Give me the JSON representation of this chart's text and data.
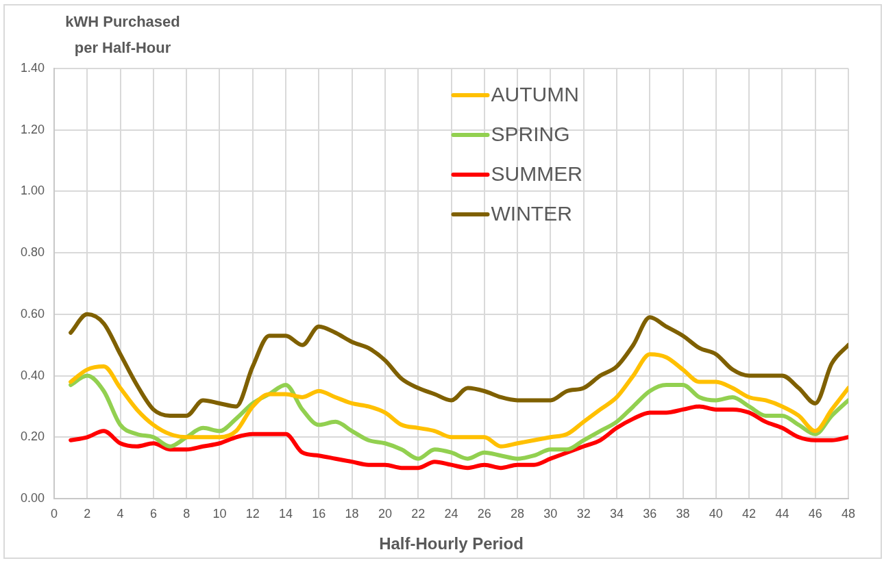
{
  "chart_data": {
    "type": "line",
    "xlabel": "Half-Hourly Period",
    "ylabel": "kWH Purchased per Half-Hour",
    "x": [
      1,
      2,
      3,
      4,
      5,
      6,
      7,
      8,
      9,
      10,
      11,
      12,
      13,
      14,
      15,
      16,
      17,
      18,
      19,
      20,
      21,
      22,
      23,
      24,
      25,
      26,
      27,
      28,
      29,
      30,
      31,
      32,
      33,
      34,
      35,
      36,
      37,
      38,
      39,
      40,
      41,
      42,
      43,
      44,
      45,
      46,
      47,
      48
    ],
    "series": [
      {
        "name": "AUTUMN",
        "color": "#ffc000",
        "values": [
          0.38,
          0.42,
          0.43,
          0.36,
          0.29,
          0.24,
          0.21,
          0.2,
          0.2,
          0.2,
          0.22,
          0.3,
          0.34,
          0.34,
          0.33,
          0.35,
          0.33,
          0.31,
          0.3,
          0.28,
          0.24,
          0.23,
          0.22,
          0.2,
          0.2,
          0.2,
          0.17,
          0.18,
          0.19,
          0.2,
          0.21,
          0.25,
          0.29,
          0.33,
          0.4,
          0.47,
          0.46,
          0.42,
          0.38,
          0.38,
          0.36,
          0.33,
          0.32,
          0.3,
          0.27,
          0.22,
          0.29,
          0.36
        ]
      },
      {
        "name": "SPRING",
        "color": "#92d050",
        "values": [
          0.37,
          0.4,
          0.35,
          0.24,
          0.21,
          0.2,
          0.17,
          0.2,
          0.23,
          0.22,
          0.26,
          0.31,
          0.34,
          0.37,
          0.29,
          0.24,
          0.25,
          0.22,
          0.19,
          0.18,
          0.16,
          0.13,
          0.16,
          0.15,
          0.13,
          0.15,
          0.14,
          0.13,
          0.14,
          0.16,
          0.16,
          0.19,
          0.22,
          0.25,
          0.3,
          0.35,
          0.37,
          0.37,
          0.33,
          0.32,
          0.33,
          0.3,
          0.27,
          0.27,
          0.24,
          0.21,
          0.27,
          0.32
        ]
      },
      {
        "name": "SUMMER",
        "color": "#ff0000",
        "values": [
          0.19,
          0.2,
          0.22,
          0.18,
          0.17,
          0.18,
          0.16,
          0.16,
          0.17,
          0.18,
          0.2,
          0.21,
          0.21,
          0.21,
          0.15,
          0.14,
          0.13,
          0.12,
          0.11,
          0.11,
          0.1,
          0.1,
          0.12,
          0.11,
          0.1,
          0.11,
          0.1,
          0.11,
          0.11,
          0.13,
          0.15,
          0.17,
          0.19,
          0.23,
          0.26,
          0.28,
          0.28,
          0.29,
          0.3,
          0.29,
          0.29,
          0.28,
          0.25,
          0.23,
          0.2,
          0.19,
          0.19,
          0.2
        ]
      },
      {
        "name": "WINTER",
        "color": "#7f6000",
        "values": [
          0.54,
          0.6,
          0.57,
          0.47,
          0.37,
          0.29,
          0.27,
          0.27,
          0.32,
          0.31,
          0.3,
          0.43,
          0.53,
          0.53,
          0.5,
          0.56,
          0.54,
          0.51,
          0.49,
          0.45,
          0.39,
          0.36,
          0.34,
          0.32,
          0.36,
          0.35,
          0.33,
          0.32,
          0.32,
          0.32,
          0.35,
          0.36,
          0.4,
          0.43,
          0.5,
          0.59,
          0.56,
          0.53,
          0.49,
          0.47,
          0.42,
          0.4,
          0.4,
          0.4,
          0.36,
          0.31,
          0.44,
          0.5
        ]
      }
    ],
    "xlim": [
      0,
      48
    ],
    "xticks": [
      0,
      2,
      4,
      6,
      8,
      10,
      12,
      14,
      16,
      18,
      20,
      22,
      24,
      26,
      28,
      30,
      32,
      34,
      36,
      38,
      40,
      42,
      44,
      46,
      48
    ],
    "ylim": [
      0,
      1.4
    ],
    "yticks": [
      {
        "value": 0,
        "label": "0.00"
      },
      {
        "value": 0.2,
        "label": "0.20"
      },
      {
        "value": 0.4,
        "label": "0.40"
      },
      {
        "value": 0.6,
        "label": "0.60"
      },
      {
        "value": 0.8,
        "label": "0.80"
      },
      {
        "value": 1.0,
        "label": "1.00"
      },
      {
        "value": 1.2,
        "label": "1.20"
      },
      {
        "value": 1.4,
        "label": "1.40"
      }
    ],
    "grid": true,
    "legend": "top",
    "marker": "none",
    "line_style": "solid"
  }
}
